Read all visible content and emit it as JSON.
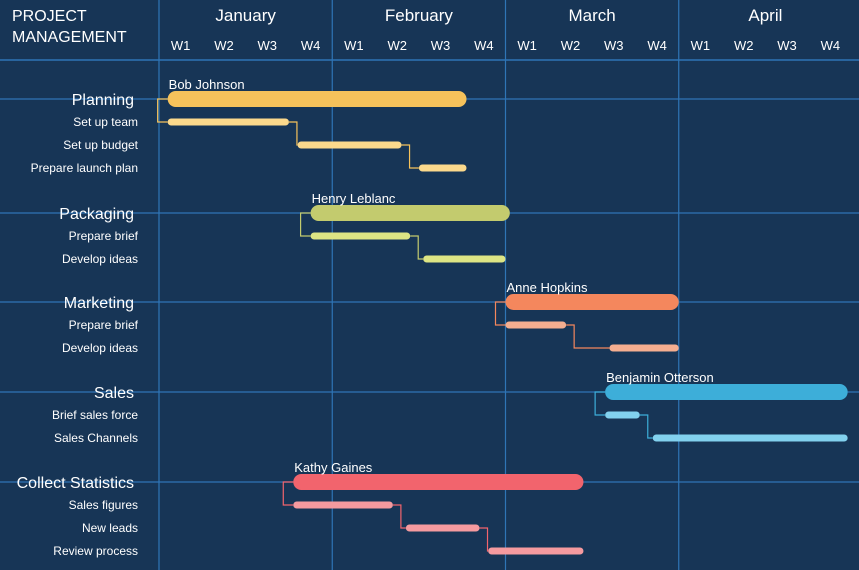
{
  "header": {
    "title_line1": "PROJECT",
    "title_line2": "MANAGEMENT"
  },
  "chart_data": {
    "type": "gantt",
    "months": [
      "January",
      "February",
      "March",
      "April"
    ],
    "weeks": [
      "W1",
      "W2",
      "W3",
      "W4"
    ],
    "x_unit": "week",
    "x_range": [
      0,
      16
    ],
    "groups": [
      {
        "name": "Planning",
        "owner": "Bob Johnson",
        "color": "#F6C25B",
        "light": "#FBD98C",
        "start": 0.2,
        "end": 7.1,
        "tasks": [
          {
            "name": "Set up team",
            "start": 0.2,
            "end": 3.0
          },
          {
            "name": "Set up budget",
            "start": 3.2,
            "end": 5.6
          },
          {
            "name": "Prepare launch plan",
            "start": 6.0,
            "end": 7.1
          }
        ]
      },
      {
        "name": "Packaging",
        "owner": "Henry Leblanc",
        "color": "#C3CB6E",
        "light": "#DDE584",
        "start": 3.5,
        "end": 8.1,
        "tasks": [
          {
            "name": "Prepare brief",
            "start": 3.5,
            "end": 5.8
          },
          {
            "name": "Develop ideas",
            "start": 6.1,
            "end": 8.0
          }
        ]
      },
      {
        "name": "Marketing",
        "owner": "Anne Hopkins",
        "color": "#F4875D",
        "light": "#F5AE90",
        "start": 8.0,
        "end": 12.0,
        "tasks": [
          {
            "name": "Prepare brief",
            "start": 8.0,
            "end": 9.4
          },
          {
            "name": "Develop ideas",
            "start": 10.4,
            "end": 12.0
          }
        ]
      },
      {
        "name": "Sales",
        "owner": "Benjamin Otterson",
        "color": "#3DAED9",
        "light": "#82D1EE",
        "start": 10.3,
        "end": 15.9,
        "tasks": [
          {
            "name": "Brief sales force",
            "start": 10.3,
            "end": 11.1
          },
          {
            "name": "Sales Channels",
            "start": 11.4,
            "end": 15.9
          }
        ]
      },
      {
        "name": "Collect Statistics",
        "owner": "Kathy Gaines",
        "color": "#F2646D",
        "light": "#F59A9F",
        "start": 3.1,
        "end": 9.8,
        "tasks": [
          {
            "name": "Sales figures",
            "start": 3.1,
            "end": 5.4
          },
          {
            "name": "New leads",
            "start": 5.7,
            "end": 7.4
          },
          {
            "name": "Review process",
            "start": 7.6,
            "end": 9.8
          }
        ]
      }
    ]
  }
}
